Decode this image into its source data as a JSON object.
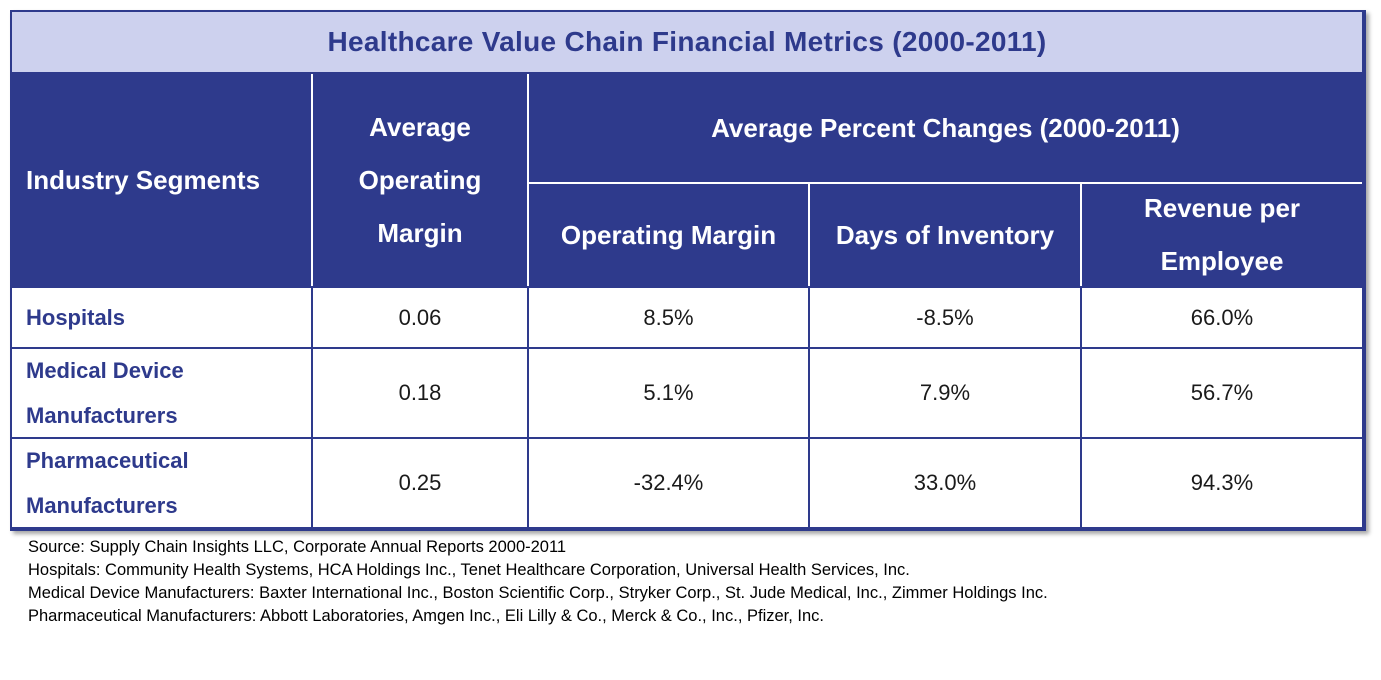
{
  "title": "Healthcare Value Chain Financial Metrics (2000-2011)",
  "headers": {
    "segments": "Industry Segments",
    "avg_margin": "Average Operating Margin",
    "group": "Average Percent Changes (2000-2011)",
    "op_margin": "Operating Margin",
    "days_inventory": "Days of Inventory",
    "rev_per_employee": "Revenue per Employee"
  },
  "chart_data": {
    "type": "table",
    "title": "Healthcare Value Chain Financial Metrics (2000-2011)",
    "columns": [
      "Industry Segments",
      "Average Operating Margin",
      "Operating Margin",
      "Days of Inventory",
      "Revenue per Employee"
    ],
    "rows": [
      {
        "segment": "Hospitals",
        "avg_margin": "0.06",
        "op_margin": "8.5%",
        "days_inventory": "-8.5%",
        "rev_per_employee": "66.0%"
      },
      {
        "segment": "Medical Device Manufacturers",
        "avg_margin": "0.18",
        "op_margin": "5.1%",
        "days_inventory": "7.9%",
        "rev_per_employee": "56.7%"
      },
      {
        "segment": "Pharmaceutical Manufacturers",
        "avg_margin": "0.25",
        "op_margin": "-32.4%",
        "days_inventory": "33.0%",
        "rev_per_employee": "94.3%"
      }
    ]
  },
  "notes": [
    "Source:  Supply Chain Insights LLC, Corporate Annual Reports 2000-2011",
    "Hospitals:  Community Health Systems, HCA Holdings Inc., Tenet Healthcare Corporation, Universal Health Services, Inc.",
    "Medical Device  Manufacturers: Baxter International Inc., Boston Scientific Corp., Stryker Corp., St. Jude Medical, Inc., Zimmer Holdings Inc.",
    "Pharmaceutical Manufacturers: Abbott Laboratories, Amgen Inc., Eli Lilly & Co., Merck & Co., Inc.,  Pfizer, Inc."
  ],
  "colors": {
    "header_bg": "#2e3a8c",
    "title_bg": "#cdd1ee",
    "segment_text": "#2e3a8c"
  }
}
